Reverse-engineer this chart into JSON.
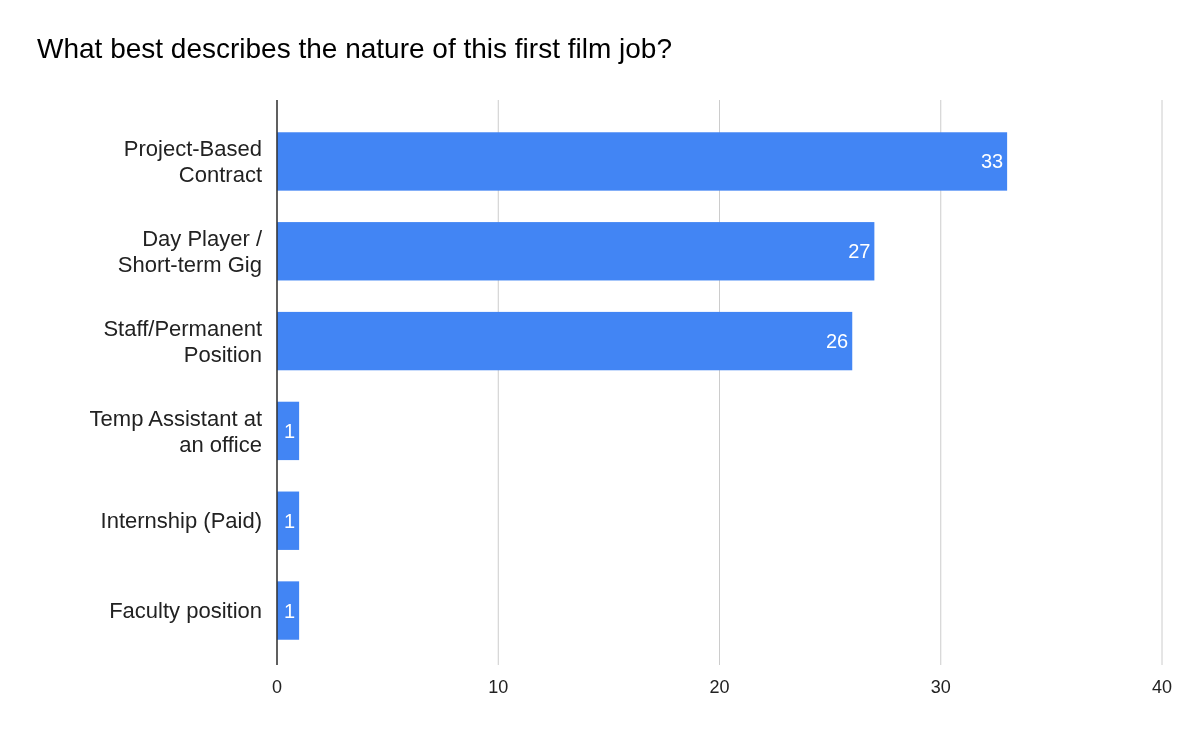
{
  "chart_data": {
    "type": "bar",
    "orientation": "horizontal",
    "title": "What best describes the nature of this first film job?",
    "categories": [
      "Project-Based Contract",
      "Day Player / Short-term Gig",
      "Staff/Permanent Position",
      "Temp Assistant at an office",
      "Internship (Paid)",
      "Faculty position"
    ],
    "values": [
      33,
      27,
      26,
      1,
      1,
      1
    ],
    "color": "#4285f4",
    "xlim": [
      0,
      40
    ],
    "xticks": [
      0,
      10,
      20,
      30,
      40
    ],
    "grid": "x",
    "data_labels": true
  }
}
